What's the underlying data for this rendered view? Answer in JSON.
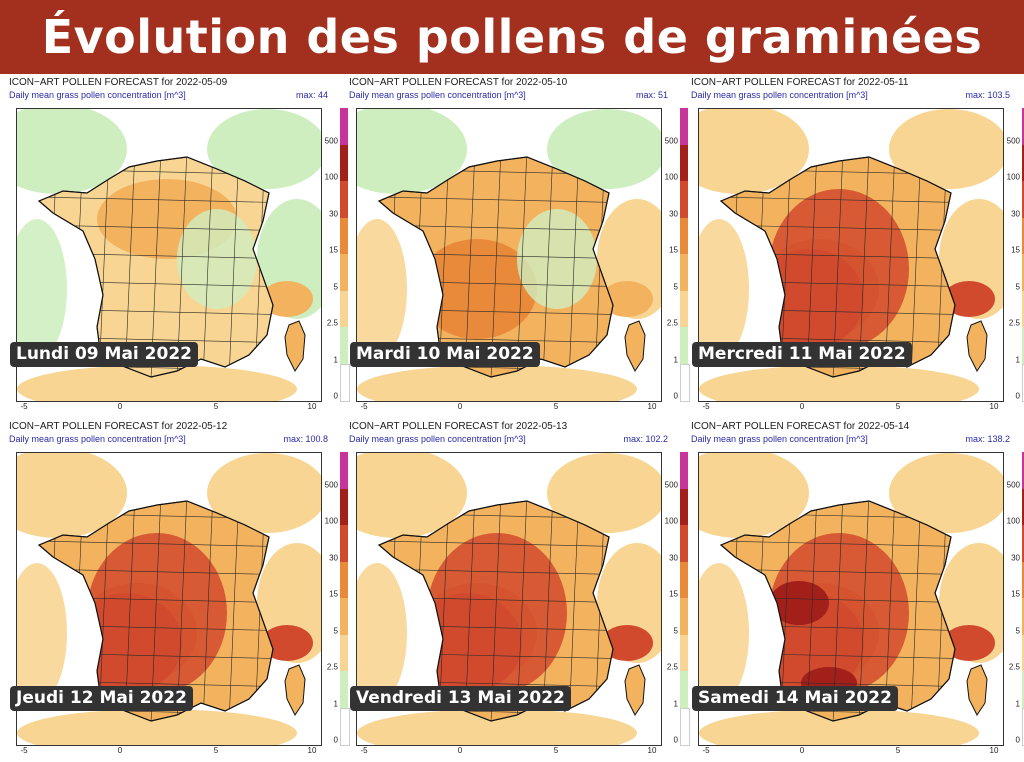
{
  "title": "Évolution des pollens de graminées",
  "legend_levels": [
    "500",
    "100",
    "30",
    "15",
    "5",
    "2.5",
    "1",
    "0"
  ],
  "legend_colors": [
    "#c8359a",
    "#a3201a",
    "#d14a2e",
    "#e98a3a",
    "#f3b35e",
    "#f8d592",
    "#cfeec0",
    "#ffffff"
  ],
  "x_ticks": [
    "-5",
    "0",
    "5",
    "10"
  ],
  "panels": [
    {
      "title": "ICON−ART POLLEN FORECAST for 2022-05-09",
      "subtitle": "Daily mean grass pollen concentration [m^3]",
      "max_label": "max: 44",
      "day_label": "Lundi 09 Mai 2022",
      "intensity": 1
    },
    {
      "title": "ICON−ART POLLEN FORECAST for 2022-05-10",
      "subtitle": "Daily mean grass pollen concentration [m^3]",
      "max_label": "max: 51",
      "day_label": "Mardi 10 Mai 2022",
      "intensity": 2
    },
    {
      "title": "ICON−ART POLLEN FORECAST for 2022-05-11",
      "subtitle": "Daily mean grass pollen concentration [m^3]",
      "max_label": "max: 103.5",
      "day_label": "Mercredi 11 Mai 2022",
      "intensity": 4
    },
    {
      "title": "ICON−ART POLLEN FORECAST for 2022-05-12",
      "subtitle": "Daily mean grass pollen concentration [m^3]",
      "max_label": "max: 100.8",
      "day_label": "Jeudi 12 Mai 2022",
      "intensity": 4
    },
    {
      "title": "ICON−ART POLLEN FORECAST for 2022-05-13",
      "subtitle": "Daily mean grass pollen concentration [m^3]",
      "max_label": "max: 102.2",
      "day_label": "Vendredi 13 Mai 2022",
      "intensity": 4
    },
    {
      "title": "ICON−ART POLLEN FORECAST for 2022-05-14",
      "subtitle": "Daily mean grass pollen concentration [m^3]",
      "max_label": "max: 138.2",
      "day_label": "Samedi 14 Mai 2022",
      "intensity": 5
    }
  ]
}
